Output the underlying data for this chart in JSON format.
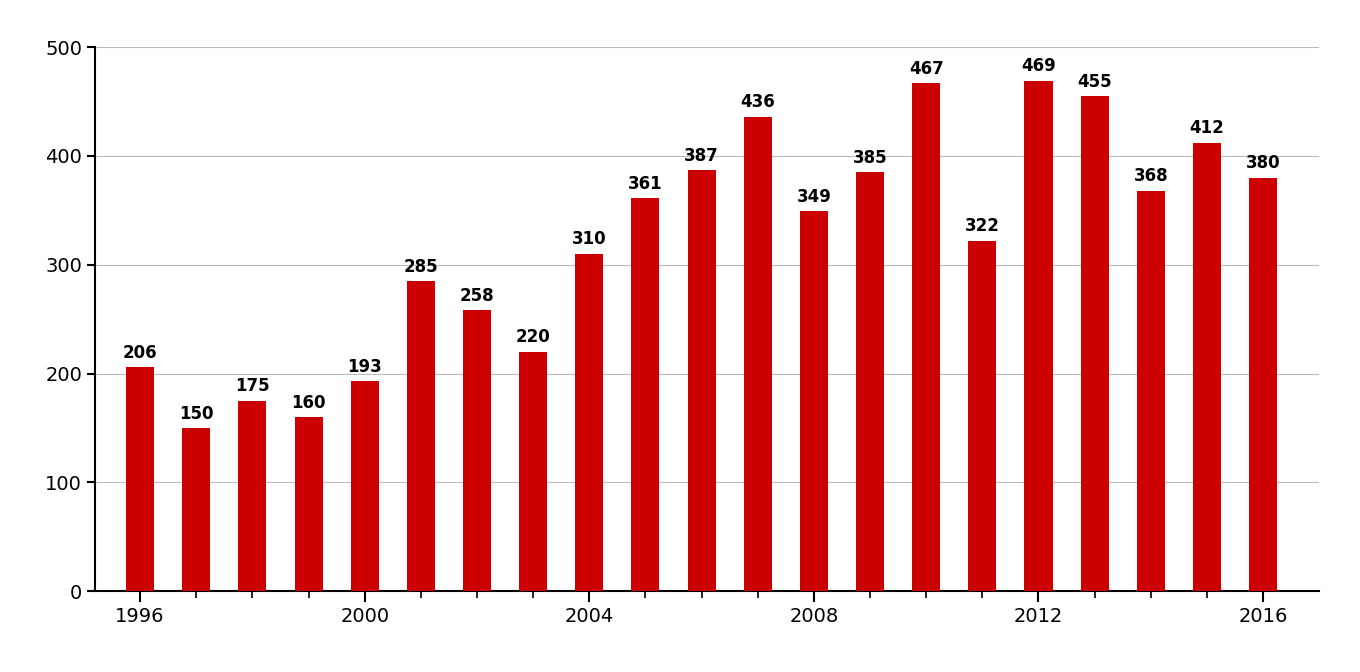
{
  "years": [
    1996,
    1997,
    1998,
    1999,
    2000,
    2001,
    2002,
    2003,
    2004,
    2005,
    2006,
    2007,
    2008,
    2009,
    2010,
    2011,
    2012,
    2013,
    2014,
    2015,
    2016
  ],
  "values": [
    206,
    150,
    175,
    160,
    193,
    285,
    258,
    220,
    310,
    361,
    387,
    436,
    349,
    385,
    467,
    322,
    469,
    455,
    368,
    412,
    380
  ],
  "bar_color": "#cc0000",
  "background_color": "#ffffff",
  "ylim": [
    0,
    500
  ],
  "yticks": [
    0,
    100,
    200,
    300,
    400,
    500
  ],
  "xticks": [
    1996,
    2000,
    2004,
    2008,
    2012,
    2016
  ],
  "grid_color": "#bbbbbb",
  "label_fontsize": 12,
  "tick_fontsize": 14,
  "bar_width": 0.5
}
